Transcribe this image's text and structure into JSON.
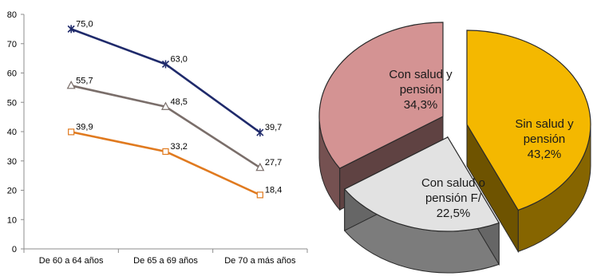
{
  "chart_data": [
    {
      "type": "line",
      "categories": [
        "De 60 a 64 años",
        "De 65 a 69 años",
        "De 70 a más años"
      ],
      "ylim": [
        0,
        80
      ],
      "yticks": [
        "0",
        "10",
        "20",
        "30",
        "40",
        "50",
        "60",
        "70",
        "80"
      ],
      "grid": false,
      "series": [
        {
          "values": [
            75.0,
            63.0,
            39.7
          ],
          "labels": [
            "75,0",
            "63,0",
            "39,7"
          ],
          "color": "#1f2a6b",
          "marker": "star"
        },
        {
          "values": [
            55.7,
            48.5,
            27.7
          ],
          "labels": [
            "55,7",
            "48,5",
            "27,7"
          ],
          "color": "#7a6e6a",
          "marker": "triangle"
        },
        {
          "values": [
            39.9,
            33.2,
            18.4
          ],
          "labels": [
            "39,9",
            "33,2",
            "18,4"
          ],
          "color": "#e07a1f",
          "marker": "square"
        }
      ]
    },
    {
      "type": "pie",
      "slices": [
        {
          "label_lines": [
            "Sin salud y",
            "pensión",
            "43,2%"
          ],
          "value": 43.2,
          "color": "#f4b800"
        },
        {
          "label_lines": [
            "Con salud o",
            "pensión F/",
            "22,5%"
          ],
          "value": 22.5,
          "color": "#e2e2e2"
        },
        {
          "label_lines": [
            "Con salud y",
            "pensión",
            "34,3%"
          ],
          "value": 34.3,
          "color": "#d49393"
        }
      ]
    }
  ]
}
